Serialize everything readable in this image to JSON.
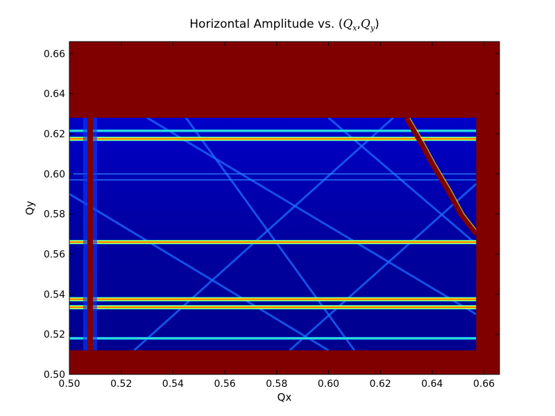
{
  "chart_data": {
    "type": "heatmap",
    "title": "Horizontal Amplitude vs. (Qx,Qy)",
    "title_parts": {
      "prefix": "Horizontal Amplitude vs. (",
      "q": "Q",
      "x_sub": "x",
      "comma": ",",
      "y_sub": "y",
      "suffix": ")"
    },
    "xlabel": "Qx",
    "ylabel": "Qy",
    "xlim": [
      0.5,
      0.666
    ],
    "ylim": [
      0.5,
      0.666
    ],
    "xticks": [
      "0.50",
      "0.52",
      "0.54",
      "0.56",
      "0.58",
      "0.60",
      "0.62",
      "0.64",
      "0.66"
    ],
    "yticks": [
      "0.50",
      "0.52",
      "0.54",
      "0.56",
      "0.58",
      "0.60",
      "0.62",
      "0.64",
      "0.66"
    ],
    "colormap": "jet",
    "background_color": "#800000",
    "data_region": {
      "x": [
        0.5,
        0.657
      ],
      "y": [
        0.512,
        0.628
      ]
    },
    "horizontal_resonances": [
      {
        "qy": 0.518,
        "strength": "medium"
      },
      {
        "qy": 0.5335,
        "strength": "strong"
      },
      {
        "qy": 0.5375,
        "strength": "strong"
      },
      {
        "qy": 0.566,
        "strength": "strong"
      },
      {
        "qy": 0.597,
        "strength": "weak"
      },
      {
        "qy": 0.6,
        "strength": "weak"
      },
      {
        "qy": 0.6175,
        "strength": "strong"
      },
      {
        "qy": 0.6215,
        "strength": "medium"
      }
    ],
    "vertical_resonance_qx": 0.508,
    "diagonal_resonances": [
      {
        "from": [
          0.525,
          0.512
        ],
        "to": [
          0.625,
          0.628
        ]
      },
      {
        "from": [
          0.5,
          0.59
        ],
        "to": [
          0.6,
          0.512
        ]
      },
      {
        "from": [
          0.53,
          0.628
        ],
        "to": [
          0.657,
          0.53
        ]
      },
      {
        "from": [
          0.585,
          0.512
        ],
        "to": [
          0.657,
          0.595
        ]
      },
      {
        "from": [
          0.545,
          0.628
        ],
        "to": [
          0.61,
          0.512
        ]
      },
      {
        "from": [
          0.6,
          0.628
        ],
        "to": [
          0.657,
          0.565
        ]
      }
    ],
    "unstable_boundary": [
      [
        0.63,
        0.628
      ],
      [
        0.635,
        0.617
      ],
      [
        0.64,
        0.605
      ],
      [
        0.646,
        0.592
      ],
      [
        0.651,
        0.58
      ],
      [
        0.657,
        0.57
      ]
    ]
  }
}
